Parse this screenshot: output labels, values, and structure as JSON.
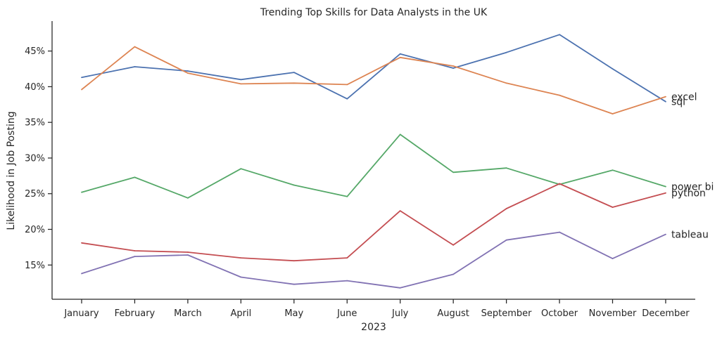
{
  "chart_data": {
    "type": "line",
    "title": "Trending Top Skills for Data Analysts in the UK",
    "xlabel": "2023",
    "ylabel": "Likelihood in Job Posting",
    "categories": [
      "January",
      "February",
      "March",
      "April",
      "May",
      "June",
      "July",
      "August",
      "September",
      "October",
      "November",
      "December"
    ],
    "yticks": [
      "15%",
      "20%",
      "25%",
      "30%",
      "35%",
      "40%",
      "45%"
    ],
    "ylim": [
      10.2,
      49.2
    ],
    "grid": false,
    "series": [
      {
        "name": "sql",
        "color": "#4c72b0",
        "values": [
          41.3,
          42.8,
          42.2,
          41.0,
          42.0,
          38.3,
          44.6,
          42.6,
          44.8,
          47.3,
          42.5,
          37.9
        ]
      },
      {
        "name": "excel",
        "color": "#dd8452",
        "values": [
          39.6,
          45.6,
          41.9,
          40.4,
          40.5,
          40.3,
          44.1,
          42.9,
          40.5,
          38.8,
          36.2,
          38.6
        ]
      },
      {
        "name": "power bi",
        "color": "#55a868",
        "values": [
          25.2,
          27.3,
          24.4,
          28.5,
          26.2,
          24.6,
          33.3,
          28.0,
          28.6,
          26.3,
          28.3,
          26.0
        ]
      },
      {
        "name": "python",
        "color": "#c44e52",
        "values": [
          18.1,
          17.0,
          16.8,
          16.0,
          15.6,
          16.0,
          22.6,
          17.8,
          22.9,
          26.4,
          23.1,
          25.1
        ]
      },
      {
        "name": "tableau",
        "color": "#8172b3",
        "values": [
          13.8,
          16.2,
          16.4,
          13.3,
          12.3,
          12.8,
          11.8,
          13.7,
          18.5,
          19.6,
          15.9,
          19.3
        ]
      }
    ]
  }
}
